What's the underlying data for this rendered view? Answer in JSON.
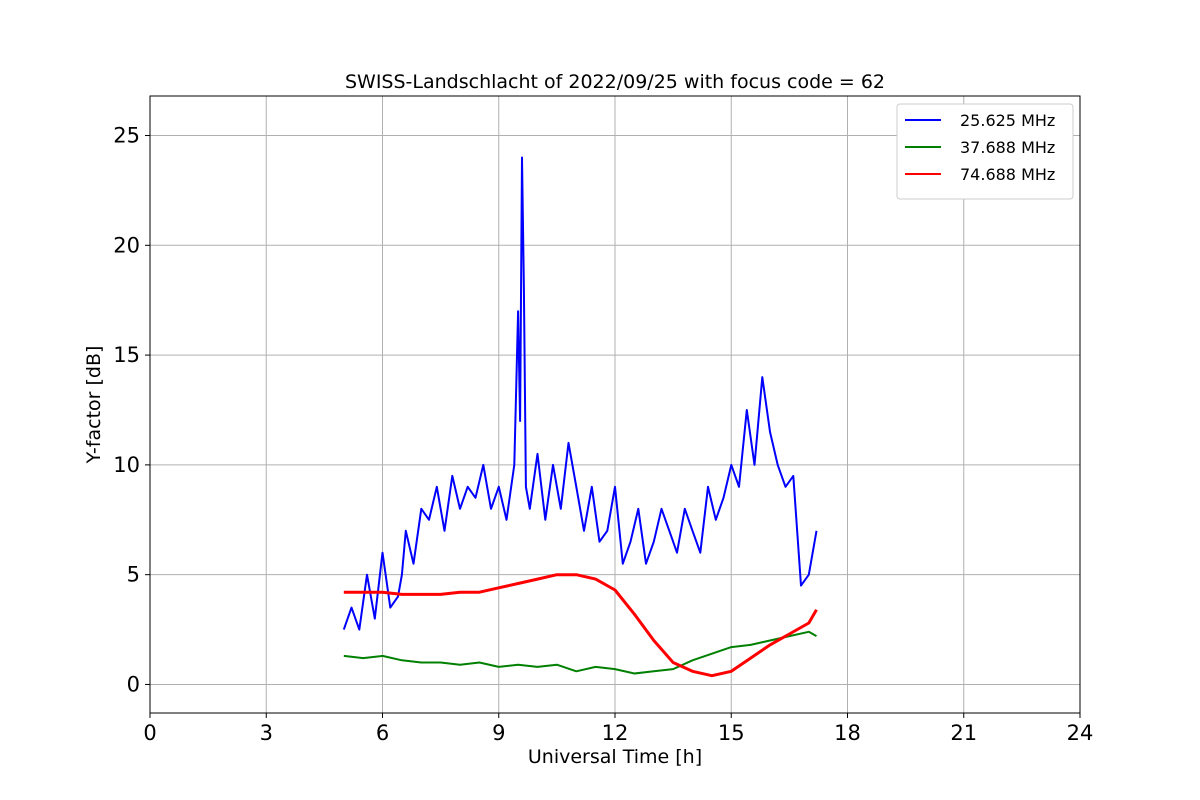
{
  "chart_data": {
    "type": "line",
    "title": "SWISS-Landschlacht of 2022/09/25 with focus code = 62",
    "xlabel": "Universal Time [h]",
    "ylabel": "Y-factor [dB]",
    "xlim": [
      0,
      24
    ],
    "ylim": [
      -1.3,
      26.8
    ],
    "xticks": [
      0,
      3,
      6,
      9,
      12,
      15,
      18,
      21,
      24
    ],
    "yticks": [
      0,
      5,
      10,
      15,
      20,
      25
    ],
    "grid": true,
    "legend_position": "top-right",
    "series": [
      {
        "name": "25.625 MHz",
        "color": "#0000ff",
        "x": [
          5.0,
          5.2,
          5.4,
          5.6,
          5.8,
          6.0,
          6.2,
          6.4,
          6.5,
          6.6,
          6.8,
          7.0,
          7.2,
          7.4,
          7.6,
          7.8,
          8.0,
          8.2,
          8.4,
          8.6,
          8.8,
          9.0,
          9.2,
          9.4,
          9.5,
          9.55,
          9.6,
          9.65,
          9.7,
          9.8,
          10.0,
          10.2,
          10.4,
          10.6,
          10.8,
          11.0,
          11.2,
          11.4,
          11.6,
          11.8,
          12.0,
          12.2,
          12.4,
          12.6,
          12.8,
          13.0,
          13.2,
          13.4,
          13.6,
          13.8,
          14.0,
          14.2,
          14.4,
          14.6,
          14.8,
          15.0,
          15.2,
          15.4,
          15.6,
          15.8,
          16.0,
          16.2,
          16.4,
          16.6,
          16.8,
          17.0,
          17.2
        ],
        "y": [
          2.5,
          3.5,
          2.5,
          5.0,
          3.0,
          6.0,
          3.5,
          4.0,
          5.0,
          7.0,
          5.5,
          8.0,
          7.5,
          9.0,
          7.0,
          9.5,
          8.0,
          9.0,
          8.5,
          10.0,
          8.0,
          9.0,
          7.5,
          10.0,
          17.0,
          12.0,
          24.0,
          18.0,
          9.0,
          8.0,
          10.5,
          7.5,
          10.0,
          8.0,
          11.0,
          9.0,
          7.0,
          9.0,
          6.5,
          7.0,
          9.0,
          5.5,
          6.5,
          8.0,
          5.5,
          6.5,
          8.0,
          7.0,
          6.0,
          8.0,
          7.0,
          6.0,
          9.0,
          7.5,
          8.5,
          10.0,
          9.0,
          12.5,
          10.0,
          14.0,
          11.5,
          10.0,
          9.0,
          9.5,
          4.5,
          5.0,
          7.0
        ]
      },
      {
        "name": "37.688 MHz",
        "color": "#008000",
        "x": [
          5.0,
          5.5,
          6.0,
          6.5,
          7.0,
          7.5,
          8.0,
          8.5,
          9.0,
          9.5,
          10.0,
          10.5,
          11.0,
          11.5,
          12.0,
          12.5,
          13.0,
          13.5,
          14.0,
          14.5,
          15.0,
          15.5,
          16.0,
          16.5,
          17.0,
          17.2
        ],
        "y": [
          1.3,
          1.2,
          1.3,
          1.1,
          1.0,
          1.0,
          0.9,
          1.0,
          0.8,
          0.9,
          0.8,
          0.9,
          0.6,
          0.8,
          0.7,
          0.5,
          0.6,
          0.7,
          1.1,
          1.4,
          1.7,
          1.8,
          2.0,
          2.2,
          2.4,
          2.2
        ]
      },
      {
        "name": "74.688 MHz",
        "color": "#ff0000",
        "x": [
          5.0,
          5.5,
          6.0,
          6.5,
          7.0,
          7.5,
          8.0,
          8.5,
          9.0,
          9.5,
          10.0,
          10.5,
          11.0,
          11.5,
          12.0,
          12.5,
          13.0,
          13.5,
          14.0,
          14.5,
          15.0,
          15.5,
          16.0,
          16.5,
          17.0,
          17.2
        ],
        "y": [
          4.2,
          4.2,
          4.2,
          4.1,
          4.1,
          4.1,
          4.2,
          4.2,
          4.4,
          4.6,
          4.8,
          5.0,
          5.0,
          4.8,
          4.3,
          3.2,
          2.0,
          1.0,
          0.6,
          0.4,
          0.6,
          1.2,
          1.8,
          2.3,
          2.8,
          3.4
        ]
      }
    ]
  }
}
